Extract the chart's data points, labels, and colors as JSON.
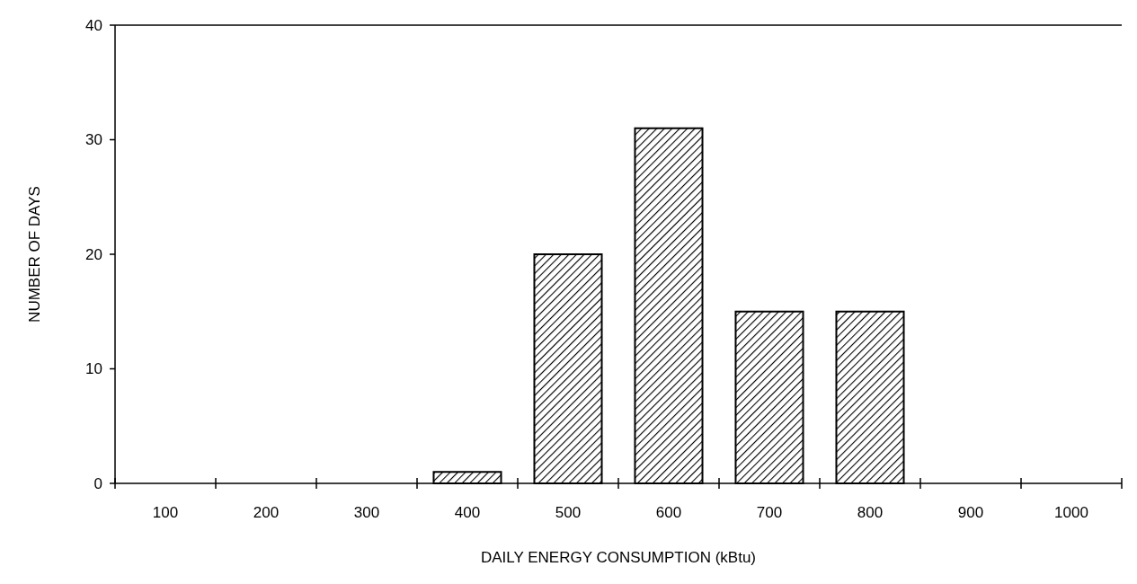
{
  "chart_data": {
    "type": "bar",
    "xlabel": "DAILY ENERGY CONSUMPTION (kBtu)",
    "ylabel": "NUMBER OF DAYS",
    "categories": [
      "100",
      "200",
      "300",
      "400",
      "500",
      "600",
      "700",
      "800",
      "900",
      "1000"
    ],
    "values": [
      0,
      0,
      0,
      1,
      20,
      31,
      15,
      15,
      0,
      0
    ],
    "color": "#000000",
    "ylim": [
      0,
      40
    ],
    "yticks": [
      0,
      10,
      20,
      30,
      40
    ],
    "grid": false
  }
}
